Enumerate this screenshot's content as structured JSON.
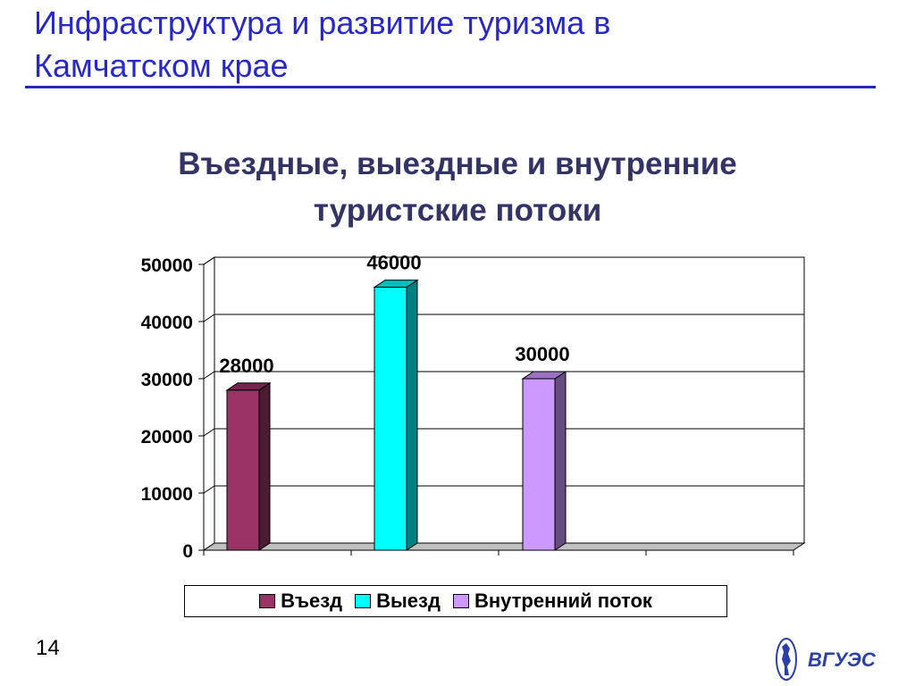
{
  "slide": {
    "title_line1": "Инфраструктура и развитие туризма в",
    "title_line2": "Камчатском крае",
    "page_number": "14",
    "accent_color": "#2828c8"
  },
  "chart_data": {
    "type": "bar",
    "title_line1": "Въездные, выездные и внутренние",
    "title_line2": "туристские потоки",
    "series": [
      {
        "name": "Въезд",
        "values": [
          28000
        ],
        "color": "#993366"
      },
      {
        "name": "Выезд",
        "values": [
          46000
        ],
        "color": "#00ffff"
      },
      {
        "name": "Внутренний поток",
        "values": [
          30000
        ],
        "color": "#cc99ff"
      }
    ],
    "ylim": [
      0,
      50000
    ],
    "yticks": [
      0,
      10000,
      20000,
      30000,
      40000,
      50000
    ],
    "ytick_labels": [
      "0",
      "10000",
      "20000",
      "30000",
      "40000",
      "50000"
    ],
    "data_labels": [
      "28000",
      "46000",
      "30000"
    ],
    "grid": true,
    "legend_position": "bottom",
    "style": "3d"
  },
  "logo": {
    "text": "ВГУЭС",
    "icon": "university-emblem-icon"
  }
}
